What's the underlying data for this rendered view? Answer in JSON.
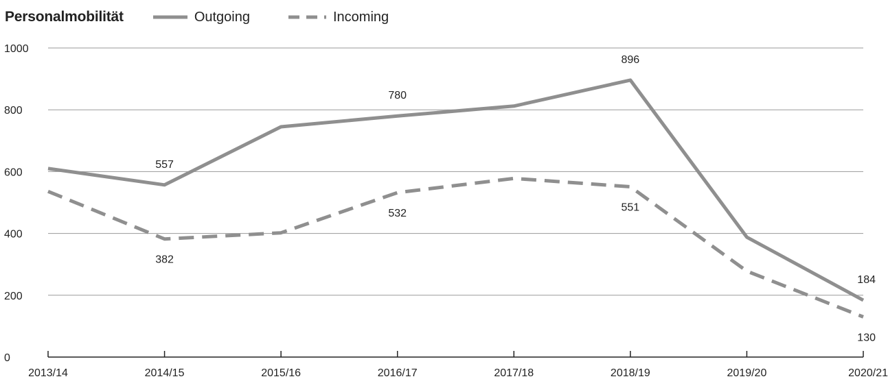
{
  "chart_data": {
    "type": "line",
    "title": "Personalmobilität",
    "categories": [
      "2013/14",
      "2014/15",
      "2015/16",
      "2016/17",
      "2017/18",
      "2018/19",
      "2019/20",
      "2020/21"
    ],
    "ylim": [
      0,
      1000
    ],
    "yticks": [
      0,
      200,
      400,
      600,
      800,
      1000
    ],
    "grid": true,
    "legend_position": "top",
    "series": [
      {
        "name": "Outgoing",
        "style": "solid",
        "color": "#8f8f8f",
        "values": [
          610,
          557,
          745,
          780,
          812,
          896,
          388,
          184
        ],
        "labels": [
          null,
          "557",
          null,
          "780",
          null,
          "896",
          null,
          "184"
        ]
      },
      {
        "name": "Incoming",
        "style": "dashed",
        "color": "#8f8f8f",
        "values": [
          536,
          382,
          402,
          532,
          578,
          551,
          278,
          130
        ],
        "labels": [
          null,
          "382",
          null,
          "532",
          null,
          "551",
          null,
          "130"
        ]
      }
    ]
  }
}
